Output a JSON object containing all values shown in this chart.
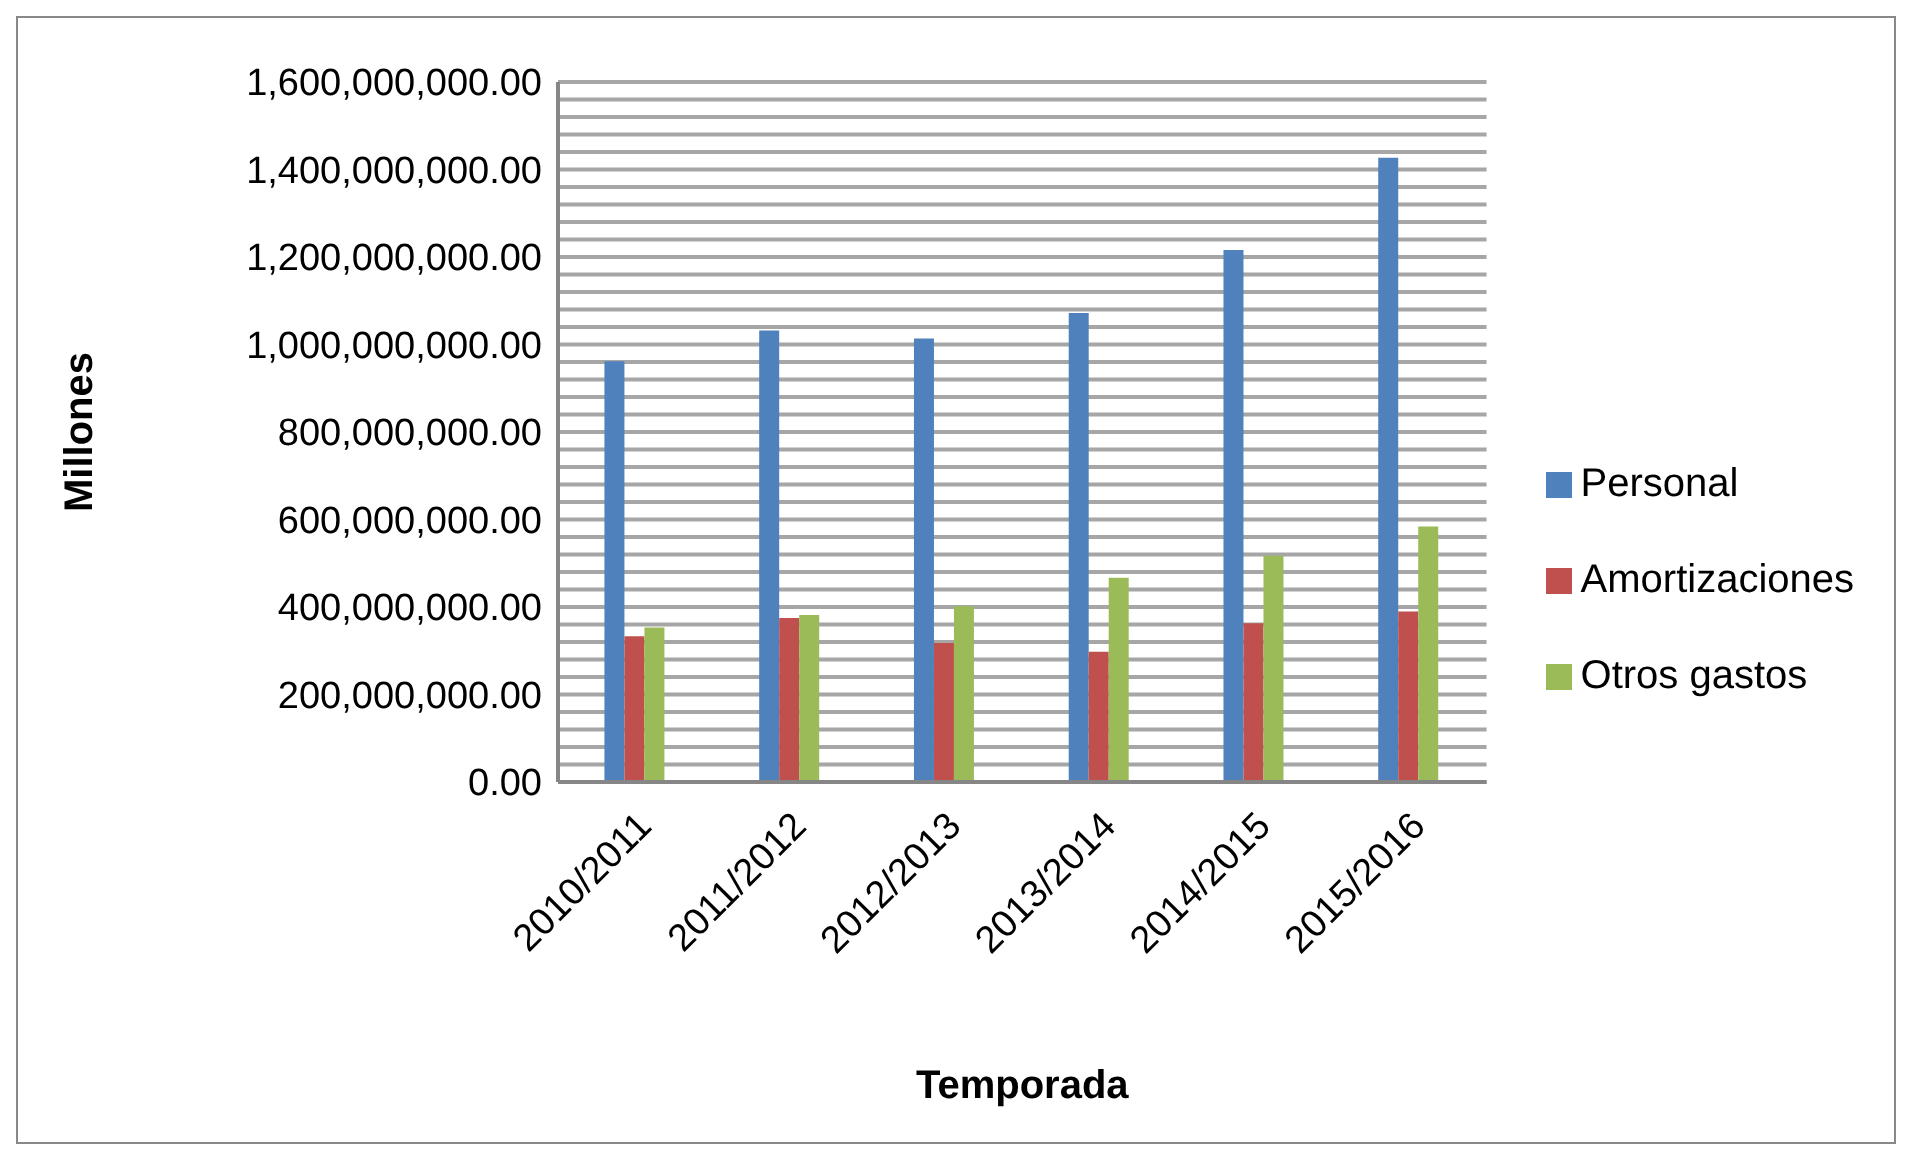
{
  "chart_data": {
    "type": "bar",
    "categories": [
      "2010/2011",
      "2011/2012",
      "2012/2013",
      "2013/2014",
      "2014/2015",
      "2015/2016"
    ],
    "series": [
      {
        "name": "Personal",
        "color": "#4f81bd",
        "values": [
          962000000,
          1032000000,
          1014000000,
          1072000000,
          1216000000,
          1427000000
        ]
      },
      {
        "name": "Amortizaciones",
        "color": "#c0504d",
        "values": [
          333000000,
          375000000,
          318000000,
          298000000,
          363000000,
          390000000
        ]
      },
      {
        "name": "Otros gastos",
        "color": "#9bbb59",
        "values": [
          353000000,
          382000000,
          402000000,
          467000000,
          517000000,
          584000000
        ]
      }
    ],
    "xlabel": "Temporada",
    "ylabel": "Millones",
    "ylim": [
      0,
      1600000000
    ],
    "yticks": [
      {
        "value": 0,
        "label": "0.00"
      },
      {
        "value": 40000000,
        "label": null
      },
      {
        "value": 80000000,
        "label": null
      },
      {
        "value": 120000000,
        "label": null
      },
      {
        "value": 160000000,
        "label": null
      },
      {
        "value": 200000000,
        "label": "200,000,000.00"
      },
      {
        "value": 240000000,
        "label": null
      },
      {
        "value": 280000000,
        "label": null
      },
      {
        "value": 320000000,
        "label": null
      },
      {
        "value": 360000000,
        "label": null
      },
      {
        "value": 400000000,
        "label": "400,000,000.00"
      },
      {
        "value": 440000000,
        "label": null
      },
      {
        "value": 480000000,
        "label": null
      },
      {
        "value": 520000000,
        "label": null
      },
      {
        "value": 560000000,
        "label": null
      },
      {
        "value": 600000000,
        "label": "600,000,000.00"
      },
      {
        "value": 640000000,
        "label": null
      },
      {
        "value": 680000000,
        "label": null
      },
      {
        "value": 720000000,
        "label": null
      },
      {
        "value": 760000000,
        "label": null
      },
      {
        "value": 800000000,
        "label": "800,000,000.00"
      },
      {
        "value": 840000000,
        "label": null
      },
      {
        "value": 880000000,
        "label": null
      },
      {
        "value": 920000000,
        "label": null
      },
      {
        "value": 960000000,
        "label": null
      },
      {
        "value": 1000000000,
        "label": "1,000,000,000.00"
      },
      {
        "value": 1040000000,
        "label": null
      },
      {
        "value": 1080000000,
        "label": null
      },
      {
        "value": 1120000000,
        "label": null
      },
      {
        "value": 1160000000,
        "label": null
      },
      {
        "value": 1200000000,
        "label": "1,200,000,000.00"
      },
      {
        "value": 1240000000,
        "label": null
      },
      {
        "value": 1280000000,
        "label": null
      },
      {
        "value": 1320000000,
        "label": null
      },
      {
        "value": 1360000000,
        "label": null
      },
      {
        "value": 1400000000,
        "label": "1,400,000,000.00"
      },
      {
        "value": 1440000000,
        "label": null
      },
      {
        "value": 1480000000,
        "label": null
      },
      {
        "value": 1520000000,
        "label": null
      },
      {
        "value": 1560000000,
        "label": null
      },
      {
        "value": 1600000000,
        "label": "1,600,000,000.00"
      }
    ],
    "grid": "y",
    "legend": "right"
  }
}
